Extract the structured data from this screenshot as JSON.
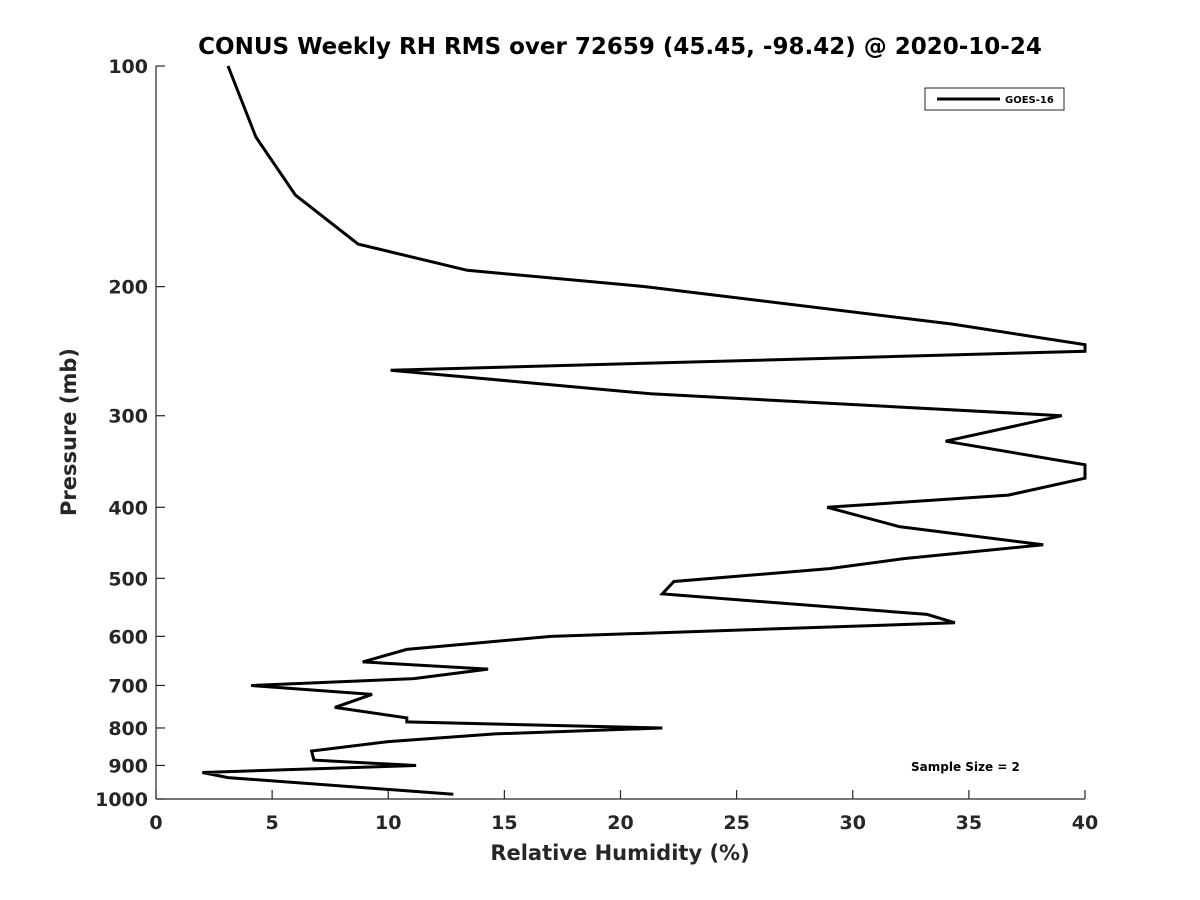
{
  "chart_data": {
    "type": "line",
    "title": "CONUS Weekly RH RMS over 72659 (45.45, -98.42) @ 2020-10-24",
    "xlabel": "Relative Humidity (%)",
    "ylabel": "Pressure (mb)",
    "xlim": [
      0,
      40
    ],
    "ylim": [
      100,
      1000
    ],
    "yscale": "log",
    "y_reversed": true,
    "x_ticks": [
      0,
      5,
      10,
      15,
      20,
      25,
      30,
      35,
      40
    ],
    "x_tick_labels": [
      "0",
      "5",
      "10",
      "15",
      "20",
      "25",
      "30",
      "35",
      "40"
    ],
    "y_ticks": [
      100,
      200,
      300,
      400,
      500,
      600,
      700,
      800,
      900,
      1000
    ],
    "y_tick_labels": [
      "100",
      "200",
      "300",
      "400",
      "500",
      "600",
      "700",
      "800",
      "900",
      "1000"
    ],
    "grid": false,
    "legend_location": "top-right",
    "annotation": "Sample Size = 2",
    "series": [
      {
        "name": "GOES-16",
        "color": "#000000",
        "x": [
          3.1,
          4.3,
          6.0,
          8.7,
          13.4,
          21.1,
          34.3,
          40.0,
          40.0,
          10.1,
          21.3,
          39.0,
          34.0,
          40.0,
          40.0,
          36.7,
          28.9,
          32.0,
          38.2,
          32.2,
          29.0,
          22.3,
          21.8,
          33.2,
          34.4,
          17.0,
          10.8,
          8.9,
          14.3,
          11.1,
          4.1,
          9.3,
          7.7,
          10.8,
          10.8,
          21.8,
          14.6,
          10.0,
          6.7,
          6.8,
          11.2,
          2.0,
          3.1,
          12.8
        ],
        "y": [
          100,
          125,
          150,
          175,
          190,
          200,
          225,
          240,
          245,
          260,
          280,
          300,
          325,
          350,
          365,
          385,
          400,
          425,
          450,
          470,
          485,
          505,
          525,
          560,
          575,
          600,
          625,
          650,
          665,
          685,
          700,
          720,
          750,
          775,
          785,
          800,
          815,
          835,
          860,
          885,
          900,
          920,
          935,
          985
        ]
      }
    ]
  }
}
